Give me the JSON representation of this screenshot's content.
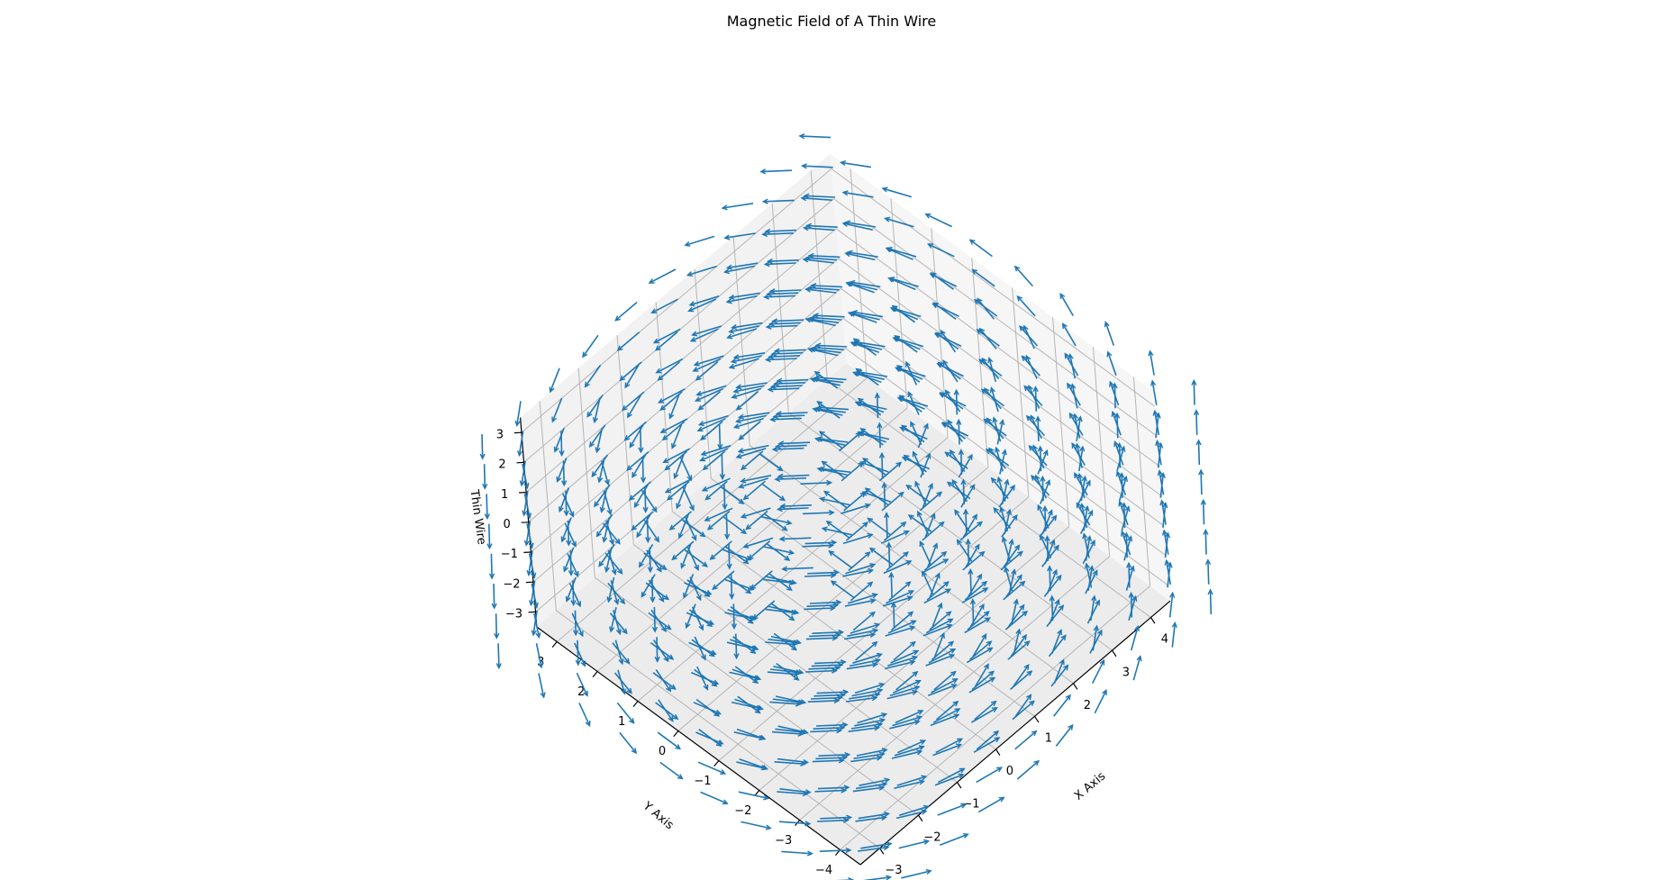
{
  "chart_data": {
    "type": "quiver3d",
    "title": "Magnetic Field of A Thin Wire",
    "xlabel": "X Axis",
    "ylabel": "Y Axis",
    "zlabel": "Thin Wire",
    "xlim": [
      -3.5,
      4.5
    ],
    "ylim": [
      -4.5,
      3.5
    ],
    "zlim": [
      -3.5,
      3.5
    ],
    "xticks": [
      -3,
      -2,
      -1,
      0,
      1,
      2,
      3,
      4
    ],
    "yticks": [
      -4,
      -3,
      -2,
      -1,
      0,
      1,
      2,
      3
    ],
    "zticks": [
      -3,
      -2,
      -1,
      0,
      1,
      2,
      3
    ],
    "xtick_labels": [
      "−3",
      "−2",
      "−1",
      "0",
      "1",
      "2",
      "3",
      "4"
    ],
    "ytick_labels": [
      "−4",
      "−3",
      "−2",
      "−1",
      "0",
      "1",
      "2",
      "3"
    ],
    "ztick_labels": [
      "−3",
      "−2",
      "−1",
      "0",
      "1",
      "2",
      "3"
    ],
    "grid": true,
    "wire_position": [
      0,
      0
    ],
    "field_grid": {
      "x": [
        -4,
        -3,
        -2,
        -1,
        0,
        1,
        2,
        3,
        4,
        5
      ],
      "y": [
        -5,
        -4,
        -3,
        -2,
        -1,
        0,
        1,
        2,
        3,
        4
      ],
      "z": [
        -4,
        -3,
        -2,
        -1,
        0,
        1,
        2,
        3
      ]
    },
    "field": "B = (-y, x, 0) / (x² + y²)",
    "arrow_color": "#1f77b4"
  }
}
